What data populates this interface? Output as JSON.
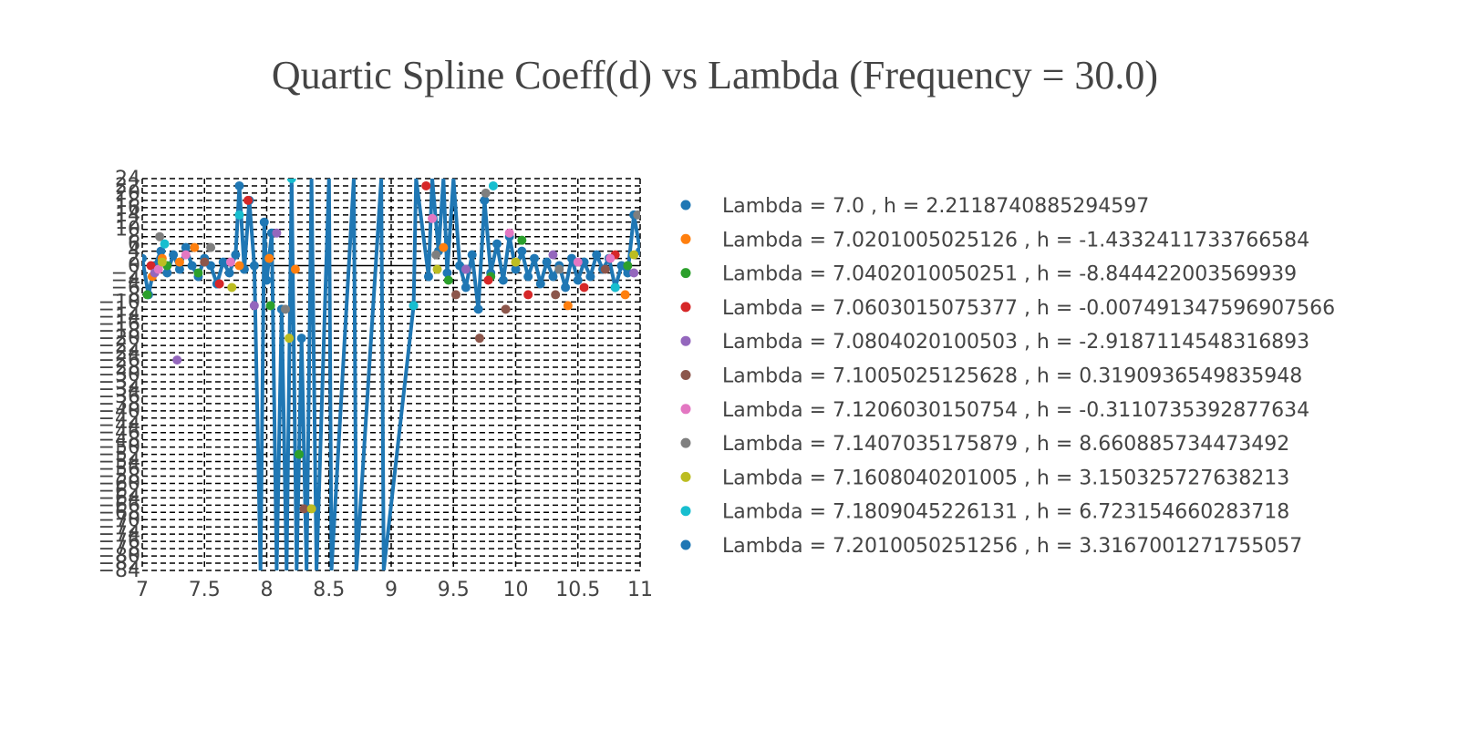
{
  "chart_data": {
    "type": "line",
    "title": "Quartic Spline Coeff(d) vs Lambda (Frequency = 30.0)",
    "xlabel": "",
    "ylabel": "",
    "xlim": [
      7,
      11
    ],
    "ylim": [
      -84,
      24
    ],
    "x_ticks": [
      "7",
      "7.5",
      "8",
      "8.5",
      "9",
      "9.5",
      "10",
      "10.5",
      "11"
    ],
    "y_ticks": [
      "24",
      "22",
      "20",
      "18",
      "16",
      "14",
      "12",
      "10",
      "8",
      "6",
      "4",
      "2",
      "0",
      "−2",
      "−4",
      "−6",
      "−8",
      "−10",
      "−12",
      "−14",
      "−16",
      "−18",
      "−20",
      "−22",
      "−24",
      "−26",
      "−28",
      "−30",
      "−32",
      "−34",
      "−36",
      "−38",
      "−40",
      "−42",
      "−44",
      "−46",
      "−48",
      "−50",
      "−52",
      "−54",
      "−56",
      "−58",
      "−60",
      "−62",
      "−64",
      "−66",
      "−68",
      "−70",
      "−72",
      "−74",
      "−76",
      "−78",
      "−80",
      "−82",
      "−84"
    ],
    "grid": true,
    "grid_style": "dashed",
    "legend_position": "right",
    "series": [
      {
        "name": "Lambda = 7.0 , h = 2.2118740885294597",
        "color": "#1f77b4",
        "points": [
          [
            7.0,
            2
          ],
          [
            7.05,
            -8
          ],
          [
            7.1,
            0
          ],
          [
            7.15,
            4
          ],
          [
            7.2,
            -2
          ],
          [
            7.25,
            3
          ],
          [
            7.3,
            -1
          ],
          [
            7.35,
            5
          ],
          [
            7.4,
            0
          ],
          [
            7.45,
            -3
          ],
          [
            7.5,
            2
          ],
          [
            7.55,
            0
          ],
          [
            7.6,
            -5
          ],
          [
            7.65,
            1
          ],
          [
            7.7,
            -2
          ],
          [
            7.75,
            3
          ],
          [
            7.78,
            22
          ],
          [
            7.82,
            -1
          ],
          [
            7.86,
            18
          ],
          [
            7.9,
            0
          ],
          [
            7.95,
            -84
          ],
          [
            7.98,
            12
          ],
          [
            8.0,
            -4
          ],
          [
            8.04,
            9
          ],
          [
            8.08,
            -84
          ],
          [
            8.12,
            -12
          ],
          [
            8.16,
            -84
          ],
          [
            8.2,
            24
          ],
          [
            8.24,
            -84
          ],
          [
            8.28,
            -20
          ],
          [
            8.32,
            -84
          ],
          [
            8.36,
            24
          ],
          [
            8.4,
            -84
          ],
          [
            8.5,
            24
          ],
          [
            8.52,
            -84
          ],
          [
            8.7,
            24
          ],
          [
            8.72,
            -84
          ],
          [
            8.92,
            24
          ],
          [
            8.94,
            -84
          ],
          [
            9.18,
            -11
          ],
          [
            9.2,
            24
          ],
          [
            9.3,
            -3
          ],
          [
            9.33,
            24
          ],
          [
            9.38,
            4
          ],
          [
            9.42,
            24
          ],
          [
            9.45,
            -2
          ],
          [
            9.5,
            24
          ],
          [
            9.55,
            0
          ],
          [
            9.6,
            -6
          ],
          [
            9.65,
            3
          ],
          [
            9.7,
            -12
          ],
          [
            9.75,
            18
          ],
          [
            9.8,
            -2
          ],
          [
            9.85,
            6
          ],
          [
            9.9,
            -4
          ],
          [
            9.95,
            8
          ],
          [
            10.0,
            -1
          ],
          [
            10.05,
            4
          ],
          [
            10.1,
            -3
          ],
          [
            10.15,
            2
          ],
          [
            10.2,
            -5
          ],
          [
            10.25,
            1
          ],
          [
            10.3,
            -3
          ],
          [
            10.35,
            0
          ],
          [
            10.4,
            -6
          ],
          [
            10.45,
            2
          ],
          [
            10.5,
            -4
          ],
          [
            10.55,
            1
          ],
          [
            10.6,
            -3
          ],
          [
            10.65,
            3
          ],
          [
            10.7,
            -1
          ],
          [
            10.75,
            2
          ],
          [
            10.8,
            -6
          ],
          [
            10.85,
            0
          ],
          [
            10.9,
            -2
          ],
          [
            10.95,
            14
          ],
          [
            11.0,
            4
          ]
        ]
      },
      {
        "name": "Lambda = 7.0201005025126 , h = -1.4332411733766584",
        "color": "#ff7f0e",
        "points": [
          [
            7.08,
            -3
          ],
          [
            7.16,
            2
          ],
          [
            7.3,
            1
          ],
          [
            7.42,
            5
          ],
          [
            7.78,
            0
          ],
          [
            8.02,
            2
          ],
          [
            8.23,
            -1
          ],
          [
            9.42,
            5
          ],
          [
            10.0,
            1
          ],
          [
            10.42,
            -11
          ],
          [
            10.88,
            -8
          ]
        ]
      },
      {
        "name": "Lambda = 7.0402010050251 , h = -8.844422003569939",
        "color": "#2ca02c",
        "points": [
          [
            7.04,
            -8
          ],
          [
            7.2,
            0
          ],
          [
            7.45,
            -2
          ],
          [
            8.03,
            -11
          ],
          [
            8.26,
            -52
          ],
          [
            9.46,
            -4
          ],
          [
            9.8,
            -3
          ],
          [
            10.05,
            7
          ],
          [
            10.9,
            0
          ]
        ]
      },
      {
        "name": "Lambda = 7.0603015075377 , h = -0.007491347596907566",
        "color": "#d62728",
        "points": [
          [
            7.07,
            0
          ],
          [
            7.62,
            -5
          ],
          [
            7.85,
            18
          ],
          [
            9.28,
            22
          ],
          [
            9.78,
            -4
          ],
          [
            10.1,
            -8
          ],
          [
            10.55,
            -6
          ],
          [
            10.8,
            3
          ]
        ]
      },
      {
        "name": "Lambda = 7.0804020100503 , h = -2.9187114548316893",
        "color": "#9467bd",
        "points": [
          [
            7.1,
            -2
          ],
          [
            7.28,
            -26
          ],
          [
            7.9,
            -11
          ],
          [
            8.08,
            9
          ],
          [
            9.6,
            -1
          ],
          [
            10.3,
            3
          ],
          [
            10.95,
            -2
          ]
        ]
      },
      {
        "name": "Lambda = 7.1005025125628 , h = 0.3190936549835948",
        "color": "#8c564b",
        "points": [
          [
            7.5,
            1
          ],
          [
            8.3,
            -67
          ],
          [
            9.52,
            -8
          ],
          [
            9.71,
            -20
          ],
          [
            9.92,
            -12
          ],
          [
            10.32,
            -8
          ],
          [
            10.72,
            -1
          ]
        ]
      },
      {
        "name": "Lambda = 7.1206030150754 , h = -0.3110735392877634",
        "color": "#e377c2",
        "points": [
          [
            7.13,
            -1
          ],
          [
            7.35,
            3
          ],
          [
            7.71,
            1
          ],
          [
            9.33,
            13
          ],
          [
            9.95,
            9
          ],
          [
            10.5,
            1
          ],
          [
            10.76,
            2
          ]
        ]
      },
      {
        "name": "Lambda = 7.1407035175879 , h = 8.660885734473492",
        "color": "#7f7f7f",
        "points": [
          [
            7.14,
            8
          ],
          [
            7.55,
            5
          ],
          [
            8.15,
            -12
          ],
          [
            9.36,
            3
          ],
          [
            9.76,
            20
          ],
          [
            10.35,
            -1
          ],
          [
            10.98,
            14
          ]
        ]
      },
      {
        "name": "Lambda = 7.1608040201005 , h = 3.150325727638213",
        "color": "#bcbd22",
        "points": [
          [
            7.16,
            1
          ],
          [
            7.72,
            -6
          ],
          [
            8.18,
            -20
          ],
          [
            8.36,
            -67
          ],
          [
            9.37,
            -1
          ],
          [
            10.0,
            1
          ],
          [
            10.95,
            3
          ]
        ]
      },
      {
        "name": "Lambda = 7.1809045226131 , h = 6.723154660283718",
        "color": "#17becf",
        "points": [
          [
            7.18,
            6
          ],
          [
            7.78,
            14
          ],
          [
            8.2,
            24
          ],
          [
            9.18,
            -11
          ],
          [
            9.82,
            22
          ],
          [
            10.8,
            -6
          ]
        ]
      },
      {
        "name": "Lambda = 7.2010050251256 , h = 3.3167001271755057",
        "color": "#1f77b4",
        "points": []
      }
    ]
  }
}
